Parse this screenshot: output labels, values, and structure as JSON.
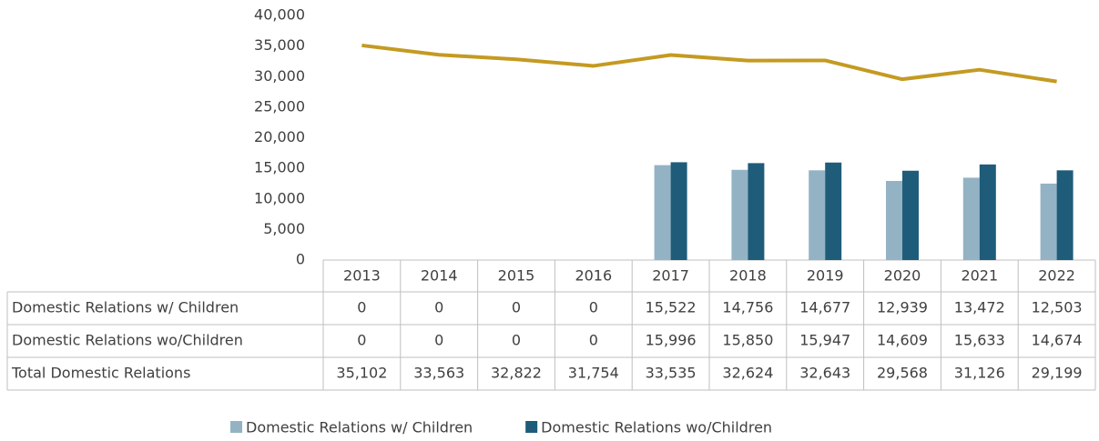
{
  "chart_data": {
    "type": "bar",
    "categories": [
      "2013",
      "2014",
      "2015",
      "2016",
      "2017",
      "2018",
      "2019",
      "2020",
      "2021",
      "2022"
    ],
    "series": [
      {
        "name": "Domestic Relations w/ Children",
        "color": "#93b3c4",
        "type": "bar",
        "values": [
          0,
          0,
          0,
          0,
          15522,
          14756,
          14677,
          12939,
          13472,
          12503
        ],
        "value_labels": [
          "0",
          "0",
          "0",
          "0",
          "15,522",
          "14,756",
          "14,677",
          "12,939",
          "13,472",
          "12,503"
        ]
      },
      {
        "name": "Domestic Relations wo/Children",
        "color": "#1f5c7a",
        "type": "bar",
        "values": [
          0,
          0,
          0,
          0,
          15996,
          15850,
          15947,
          14609,
          15633,
          14674
        ],
        "value_labels": [
          "0",
          "0",
          "0",
          "0",
          "15,996",
          "15,850",
          "15,947",
          "14,609",
          "15,633",
          "14,674"
        ]
      },
      {
        "name": "Total Domestic Relations",
        "color": "#c49a22",
        "type": "line",
        "values": [
          35102,
          33563,
          32822,
          31754,
          33535,
          32624,
          32643,
          29568,
          31126,
          29199
        ],
        "value_labels": [
          "35,102",
          "33,563",
          "32,822",
          "31,754",
          "33,535",
          "32,624",
          "32,643",
          "29,568",
          "31,126",
          "29,199"
        ]
      }
    ],
    "ylim": [
      0,
      40000
    ],
    "yticks": [
      0,
      {
        "value": 5000,
        "label": "5,000"
      },
      {
        "value": 10000,
        "label": "10,000"
      },
      {
        "value": 15000,
        "label": "15,000"
      },
      {
        "value": 20000,
        "label": "20,000"
      },
      {
        "value": 25000,
        "label": "25,000"
      },
      {
        "value": 30000,
        "label": "30,000"
      },
      {
        "value": 35000,
        "label": "35,000"
      },
      {
        "value": 40000,
        "label": "40,000"
      }
    ],
    "grid": false,
    "legend": "bottom"
  }
}
